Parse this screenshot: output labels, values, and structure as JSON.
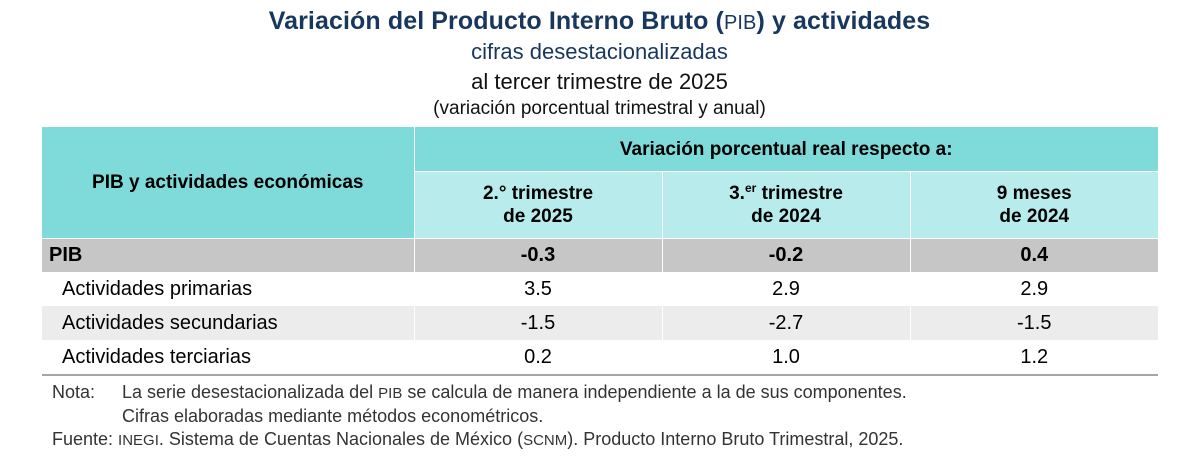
{
  "header": {
    "title_part1": "Variación del Producto Interno Bruto (",
    "title_abbr": "PIB",
    "title_part2": ") y actividades",
    "subtitle1": "cifras desestacionalizadas",
    "subtitle2": "al tercer trimestre de 2025",
    "subtitle3": "(variación porcentual trimestral y anual)"
  },
  "table": {
    "row_header": "PIB y actividades económicas",
    "group_header": "Variación porcentual real respecto a:",
    "columns": [
      {
        "line1_main": "2.° trimestre",
        "line1_sup": "",
        "line1_rest": "",
        "line2": "de 2025"
      },
      {
        "line1_main": "3.",
        "line1_sup": "er",
        "line1_rest": " trimestre",
        "line2": "de 2024"
      },
      {
        "line1_main": "9 meses",
        "line1_sup": "",
        "line1_rest": "",
        "line2": "de 2024"
      }
    ],
    "rows": [
      {
        "label": "PIB",
        "values": [
          "-0.3",
          "-0.2",
          "0.4"
        ]
      },
      {
        "label": "Actividades primarias",
        "values": [
          "3.5",
          "2.9",
          "2.9"
        ]
      },
      {
        "label": "Actividades secundarias",
        "values": [
          "-1.5",
          "-2.7",
          "-1.5"
        ]
      },
      {
        "label": "Actividades terciarias",
        "values": [
          "0.2",
          "1.0",
          "1.2"
        ]
      }
    ]
  },
  "notes": {
    "label": "Nota:",
    "line1_part1": "La serie desestacionalizada del ",
    "line1_abbr": "PIB",
    "line1_part2": " se calcula de manera independiente a la de sus componentes.",
    "line2": "Cifras elaboradas mediante métodos econométricos."
  },
  "source": {
    "label": "Fuente: ",
    "abbr1": "INEGI",
    "text1": ". Sistema de Cuentas Nacionales de México (",
    "abbr2": "SCNM",
    "text2": "). Producto Interno Bruto Trimestral, 2025."
  },
  "colors": {
    "title": "#17375e",
    "header_dark": "#7fdada",
    "header_light": "#b8ecec",
    "pib_row": "#c6c6c6",
    "alt_row": "#ececec"
  }
}
